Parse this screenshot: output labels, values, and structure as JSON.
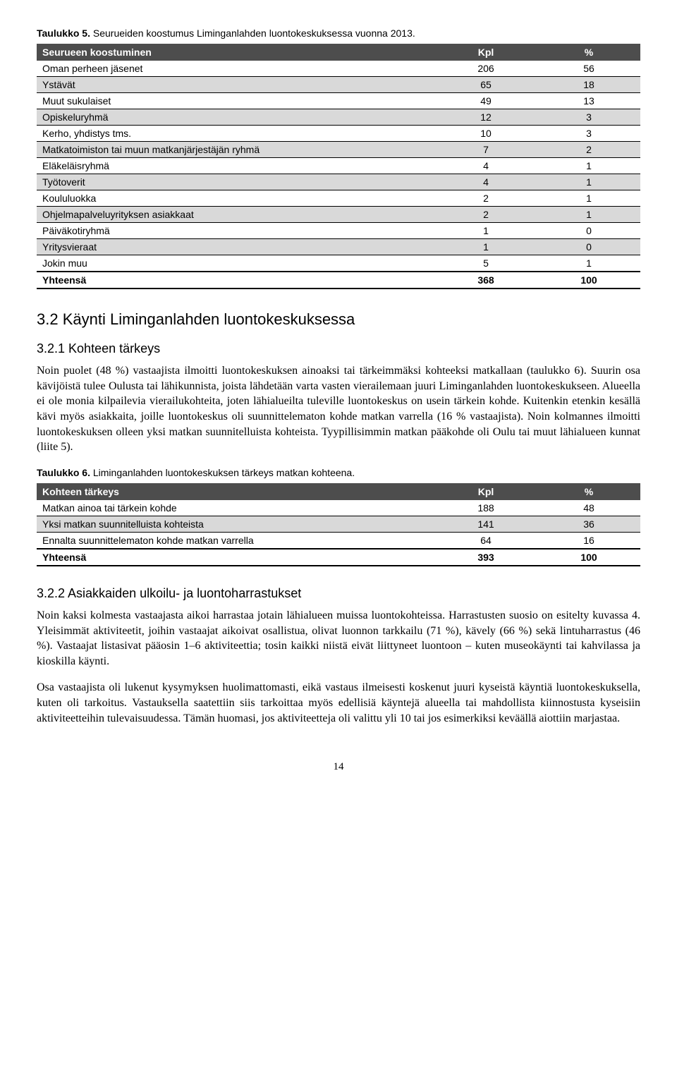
{
  "table5": {
    "caption_bold": "Taulukko 5.",
    "caption_rest": " Seurueiden koostumus Liminganlahden luontokeskuksessa vuonna 2013.",
    "header": [
      "Seurueen koostuminen",
      "Kpl",
      "%"
    ],
    "rows": [
      {
        "label": "Oman perheen jäsenet",
        "kpl": "206",
        "pct": "56",
        "alt": false
      },
      {
        "label": "Ystävät",
        "kpl": "65",
        "pct": "18",
        "alt": true
      },
      {
        "label": "Muut sukulaiset",
        "kpl": "49",
        "pct": "13",
        "alt": false
      },
      {
        "label": "Opiskeluryhmä",
        "kpl": "12",
        "pct": "3",
        "alt": true
      },
      {
        "label": "Kerho, yhdistys tms.",
        "kpl": "10",
        "pct": "3",
        "alt": false
      },
      {
        "label": "Matkatoimiston tai muun matkanjärjestäjän ryhmä",
        "kpl": "7",
        "pct": "2",
        "alt": true
      },
      {
        "label": "Eläkeläisryhmä",
        "kpl": "4",
        "pct": "1",
        "alt": false
      },
      {
        "label": "Työtoverit",
        "kpl": "4",
        "pct": "1",
        "alt": true
      },
      {
        "label": "Koululuokka",
        "kpl": "2",
        "pct": "1",
        "alt": false
      },
      {
        "label": "Ohjelmapalveluyrityksen asiakkaat",
        "kpl": "2",
        "pct": "1",
        "alt": true
      },
      {
        "label": "Päiväkotiryhmä",
        "kpl": "1",
        "pct": "0",
        "alt": false
      },
      {
        "label": "Yritysvieraat",
        "kpl": "1",
        "pct": "0",
        "alt": true
      },
      {
        "label": "Jokin muu",
        "kpl": "5",
        "pct": "1",
        "alt": false
      }
    ],
    "total": {
      "label": "Yhteensä",
      "kpl": "368",
      "pct": "100"
    }
  },
  "section32_title": "3.2 Käynti Liminganlahden luontokeskuksessa",
  "section321_title": "3.2.1 Kohteen tärkeys",
  "para1": "Noin puolet (48 %) vastaajista ilmoitti luontokeskuksen ainoaksi tai tärkeimmäksi kohteeksi matkallaan (taulukko 6). Suurin osa kävijöistä tulee Oulusta tai lähikunnista, joista lähdetään varta vasten vierailemaan juuri Liminganlahden luontokeskukseen. Alueella ei ole monia kilpailevia vierailukohteita, joten lähialueilta tuleville luontokeskus on usein tärkein kohde. Kuitenkin etenkin kesällä kävi myös asiakkaita, joille luontokeskus oli suunnittelematon kohde matkan varrella (16 % vastaajista). Noin kolmannes ilmoitti luontokeskuksen olleen yksi matkan suunnitelluista kohteista. Tyypillisimmin matkan pääkohde oli Oulu tai muut lähialueen kunnat (liite 5).",
  "table6": {
    "caption_bold": "Taulukko 6.",
    "caption_rest": " Liminganlahden luontokeskuksen tärkeys matkan kohteena.",
    "header": [
      "Kohteen tärkeys",
      "Kpl",
      "%"
    ],
    "rows": [
      {
        "label": "Matkan ainoa tai tärkein kohde",
        "kpl": "188",
        "pct": "48",
        "alt": false
      },
      {
        "label": "Yksi matkan suunnitelluista kohteista",
        "kpl": "141",
        "pct": "36",
        "alt": true
      },
      {
        "label": "Ennalta suunnittelematon kohde matkan varrella",
        "kpl": "64",
        "pct": "16",
        "alt": false
      }
    ],
    "total": {
      "label": "Yhteensä",
      "kpl": "393",
      "pct": "100"
    }
  },
  "section322_title": "3.2.2 Asiakkaiden ulkoilu- ja luontoharrastukset",
  "para2": "Noin kaksi kolmesta vastaajasta aikoi harrastaa jotain lähialueen muissa luontokohteissa. Harrastusten suosio on esitelty kuvassa 4. Yleisimmät aktiviteetit, joihin vastaajat aikoivat osallistua, olivat luonnon tarkkailu (71 %), kävely (66 %) sekä lintuharrastus (46 %). Vastaajat listasivat pääosin 1–6 aktiviteettia; tosin kaikki niistä eivät liittyneet luontoon – kuten museokäynti tai kahvilassa ja kioskilla käynti.",
  "para3": "Osa vastaajista oli lukenut kysymyksen huolimattomasti, eikä vastaus ilmeisesti koskenut juuri kyseistä käyntiä luontokeskuksella, kuten oli tarkoitus. Vastauksella saatettiin siis tarkoittaa myös edellisiä käyntejä alueella tai mahdollista kiinnostusta kyseisiin aktiviteetteihin tulevaisuudessa. Tämän huomasi, jos aktiviteetteja oli valittu yli 10 tai jos esimerkiksi keväällä aiottiin marjastaa.",
  "page_number": "14",
  "styling": {
    "header_bg": "#4d4d4d",
    "header_fg": "#ffffff",
    "alt_row_bg": "#d9d9d9",
    "body_font": "Times New Roman",
    "sans_font": "Arial",
    "caption_fontsize": 14,
    "table_fontsize": 14,
    "body_fontsize": 16,
    "h2_fontsize": 22,
    "h3_fontsize": 18
  }
}
